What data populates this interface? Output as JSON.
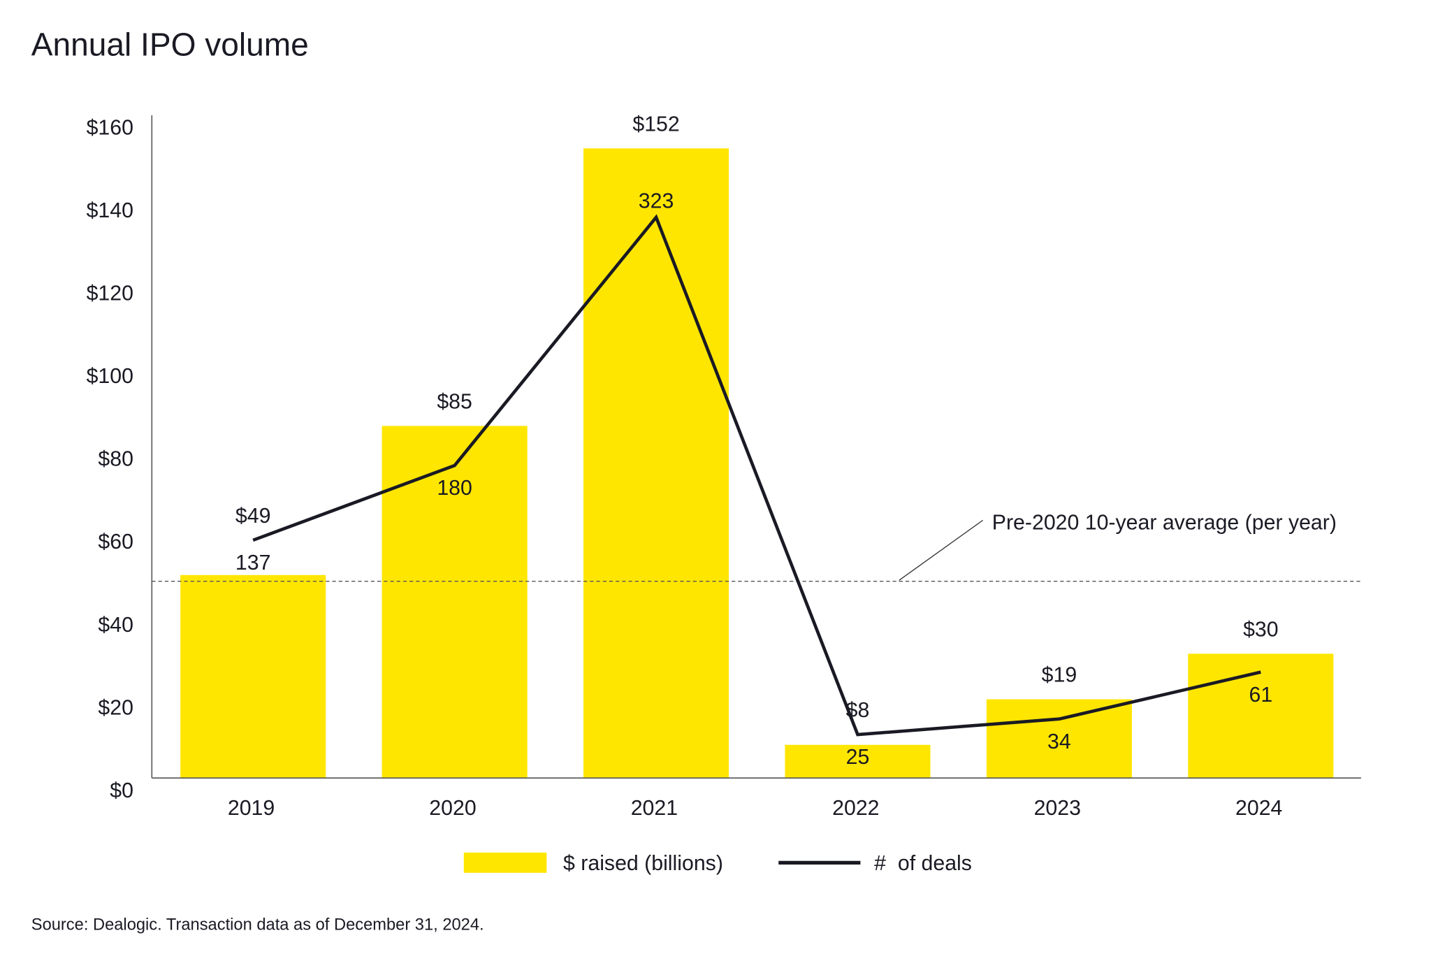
{
  "chart_data": {
    "type": "bar",
    "title": "Annual IPO volume",
    "categories": [
      "2019",
      "2020",
      "2021",
      "2022",
      "2023",
      "2024"
    ],
    "series": [
      {
        "name": "$ raised (billions)",
        "type": "bar",
        "axis": "left",
        "values": [
          49,
          85,
          152,
          8,
          19,
          30
        ],
        "labels": [
          "$49",
          "$85",
          "$152",
          "$8",
          "$19",
          "$30"
        ],
        "color": "#FFE600"
      },
      {
        "name": "# of deals",
        "type": "line",
        "axis": "right-hidden",
        "values": [
          137,
          180,
          323,
          25,
          34,
          61
        ],
        "labels": [
          "137",
          "180",
          "323",
          "25",
          "34",
          "61"
        ],
        "color": "#1a1a24"
      }
    ],
    "yticks": [
      "$0",
      "$20",
      "$40",
      "$60",
      "$80",
      "$100",
      "$120",
      "$140",
      "$160"
    ],
    "ylim": [
      0,
      160
    ],
    "reference_line": {
      "label": "Pre-2020 10-year average (per year)",
      "value": 47.5,
      "style": "dashed"
    },
    "legend": {
      "placement": "bottom",
      "items": [
        "$ raised (billions)",
        "#  of deals"
      ]
    },
    "grid": false,
    "source": "Source: Dealogic. Transaction data as of December 31, 2024."
  }
}
